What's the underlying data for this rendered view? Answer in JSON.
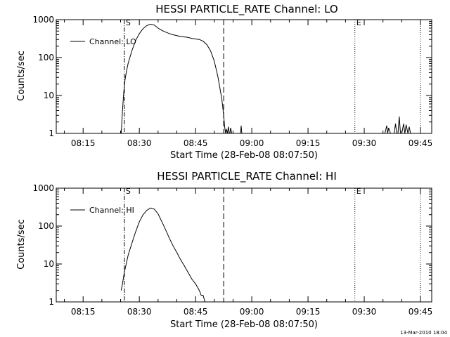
{
  "chart_data": [
    {
      "type": "line",
      "title": "HESSI PARTICLE_RATE Channel: LO",
      "xlabel": "Start Time (28-Feb-08 08:07:50)",
      "ylabel": "Counts/sec",
      "yscale": "log",
      "ylim": [
        1,
        1000
      ],
      "xlim": [
        "08:07:50",
        "09:48:00"
      ],
      "xticks": [
        "08:15",
        "08:30",
        "08:45",
        "09:00",
        "09:15",
        "09:30",
        "09:45"
      ],
      "yticks": [
        "1",
        "10",
        "100",
        "1000"
      ],
      "legend": {
        "position": "top-left",
        "entries": [
          "Channel: LO"
        ]
      },
      "markers": [
        {
          "label": "S",
          "time": "08:26:00",
          "style": "dash-dot"
        },
        {
          "label": "",
          "time": "08:52:30",
          "style": "dashed"
        },
        {
          "label": "E",
          "time": "09:27:30",
          "style": "dotted"
        },
        {
          "label": "",
          "time": "09:45:00",
          "style": "dotted"
        }
      ],
      "series": [
        {
          "name": "Channel: LO",
          "x": [
            "08:25:10",
            "08:25:30",
            "08:25:50",
            "08:26:10",
            "08:26:30",
            "08:27:00",
            "08:28:00",
            "08:29:00",
            "08:30:00",
            "08:31:00",
            "08:32:00",
            "08:33:00",
            "08:34:00",
            "08:35:00",
            "08:36:00",
            "08:37:00",
            "08:38:00",
            "08:39:00",
            "08:40:00",
            "08:41:00",
            "08:42:00",
            "08:43:00",
            "08:44:00",
            "08:45:00",
            "08:46:00",
            "08:47:00",
            "08:48:00",
            "08:49:00",
            "08:50:00",
            "08:51:00",
            "08:52:00",
            "08:52:30",
            "08:52:45",
            "08:53:00",
            "08:53:15",
            "08:53:30",
            "08:53:45",
            "08:54:00",
            "08:54:10",
            "08:54:20",
            "08:54:40",
            "08:55:00",
            "08:56:00",
            "08:57:00",
            "08:57:10",
            "08:57:20",
            "08:57:30",
            "09:35:30",
            "09:36:00",
            "09:36:15",
            "09:36:30",
            "09:37:00",
            "09:38:00",
            "09:38:20",
            "09:38:40",
            "09:39:00",
            "09:39:20",
            "09:39:40",
            "09:40:00",
            "09:40:30",
            "09:40:50",
            "09:41:10",
            "09:41:40",
            "09:42:00",
            "09:42:20"
          ],
          "y": [
            1,
            4,
            12,
            25,
            40,
            70,
            150,
            280,
            430,
            580,
            700,
            760,
            720,
            600,
            520,
            470,
            430,
            400,
            380,
            360,
            350,
            340,
            320,
            310,
            300,
            270,
            220,
            150,
            80,
            30,
            8,
            3,
            1.5,
            1,
            1.3,
            1,
            1.5,
            1,
            1,
            1.4,
            1,
            1,
            1,
            1,
            1.6,
            1,
            1,
            1,
            1.6,
            1,
            1.4,
            1,
            1,
            1.8,
            1,
            1,
            2.8,
            1,
            1,
            1.8,
            1,
            1.7,
            1,
            1.5,
            1
          ]
        }
      ]
    },
    {
      "type": "line",
      "title": "HESSI PARTICLE_RATE Channel: HI",
      "xlabel": "Start Time (28-Feb-08 08:07:50)",
      "ylabel": "Counts/sec",
      "yscale": "log",
      "ylim": [
        1,
        1000
      ],
      "xlim": [
        "08:07:50",
        "09:48:00"
      ],
      "xticks": [
        "08:15",
        "08:30",
        "08:45",
        "09:00",
        "09:15",
        "09:30",
        "09:45"
      ],
      "yticks": [
        "1",
        "10",
        "100",
        "1000"
      ],
      "legend": {
        "position": "top-left",
        "entries": [
          "Channel: HI"
        ]
      },
      "markers": [
        {
          "label": "S",
          "time": "08:26:00",
          "style": "dash-dot"
        },
        {
          "label": "",
          "time": "08:52:30",
          "style": "dashed"
        },
        {
          "label": "E",
          "time": "09:27:30",
          "style": "dotted"
        },
        {
          "label": "",
          "time": "09:45:00",
          "style": "dotted"
        }
      ],
      "series": [
        {
          "name": "Channel: HI",
          "x": [
            "08:25:10",
            "08:25:30",
            "08:26:00",
            "08:26:30",
            "08:27:00",
            "08:28:00",
            "08:29:00",
            "08:30:00",
            "08:31:00",
            "08:32:00",
            "08:33:00",
            "08:34:00",
            "08:35:00",
            "08:36:00",
            "08:37:00",
            "08:38:00",
            "08:39:00",
            "08:40:00",
            "08:41:00",
            "08:42:00",
            "08:43:00",
            "08:44:00",
            "08:45:00",
            "08:46:00",
            "08:46:30",
            "08:47:00",
            "08:47:30"
          ],
          "y": [
            2,
            3,
            6,
            10,
            17,
            35,
            70,
            130,
            200,
            260,
            300,
            280,
            210,
            130,
            80,
            48,
            30,
            20,
            13,
            9,
            6,
            4,
            3,
            2,
            1.5,
            1.5,
            1
          ]
        }
      ]
    }
  ],
  "timestamp": "13-Mar-2010 18:04"
}
